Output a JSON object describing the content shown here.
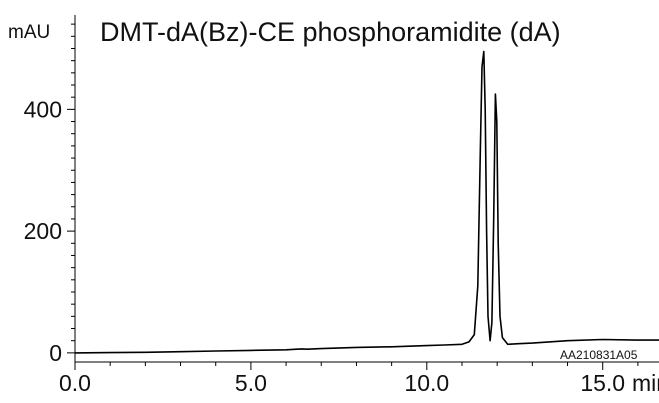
{
  "chart_data": {
    "type": "line",
    "title": "DMT-dA(Bz)-CE phosphoramidite (dA)",
    "ylabel": "mAU",
    "xlabel": "min",
    "annotation": "AA210831A05",
    "xlim": [
      0,
      16.6
    ],
    "ylim": [
      -15,
      555
    ],
    "x_ticks": [
      0,
      5,
      10,
      15
    ],
    "x_tick_labels": [
      "0.0",
      "5.0",
      "10.0",
      "15.0"
    ],
    "y_ticks": [
      0,
      200,
      400
    ],
    "y_tick_labels": [
      "0",
      "200",
      "400"
    ],
    "grid": false,
    "series": [
      {
        "x": [
          0,
          1,
          2,
          3,
          4,
          5,
          6,
          6.3,
          6.45,
          6.6,
          7,
          8,
          9,
          10,
          10.5,
          11,
          11.2,
          11.35,
          11.45,
          11.52,
          11.57,
          11.62,
          11.66,
          11.7,
          11.74,
          11.8,
          11.85,
          11.9,
          11.95,
          11.99,
          12.03,
          12.08,
          12.15,
          12.3,
          12.6,
          13,
          14,
          15,
          16,
          16.6
        ],
        "y": [
          0,
          0.5,
          1,
          2,
          3,
          4,
          5,
          6,
          6.5,
          6,
          7,
          9,
          10,
          12,
          13,
          14,
          18,
          30,
          110,
          330,
          470,
          495,
          400,
          200,
          60,
          20,
          50,
          220,
          425,
          380,
          180,
          60,
          25,
          14,
          15,
          16,
          20,
          22,
          21,
          21
        ]
      }
    ]
  }
}
